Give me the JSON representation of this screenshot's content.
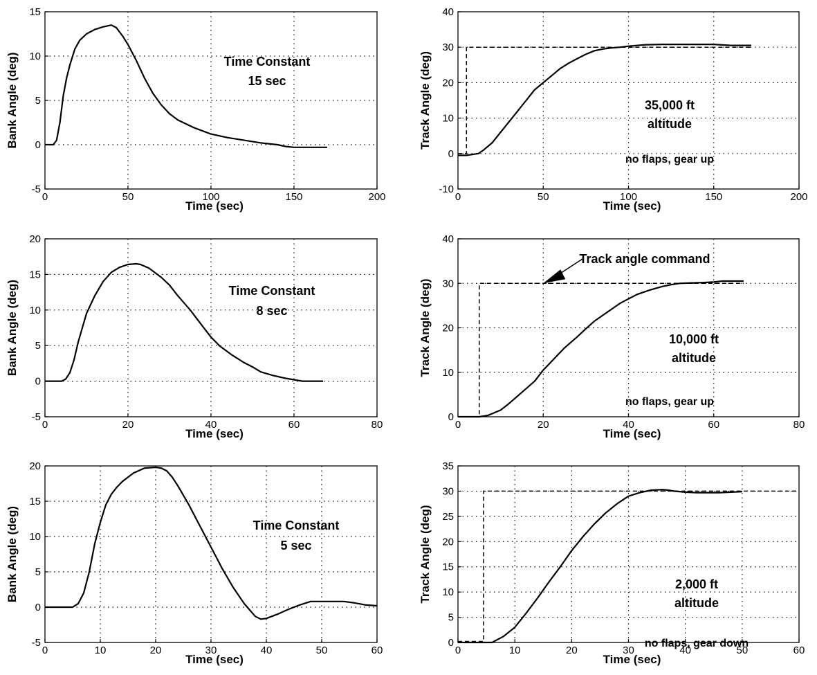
{
  "chart_data": [
    {
      "type": "line",
      "xlabel": "Time (sec)",
      "ylabel": "Bank Angle (deg)",
      "xlim": [
        0,
        200
      ],
      "ylim": [
        -5,
        15
      ],
      "xticks": [
        "0",
        "50",
        "100",
        "150",
        "200"
      ],
      "yticks": [
        "-5",
        "0",
        "5",
        "10",
        "15"
      ],
      "grid": true,
      "annotations": [
        "Time Constant",
        "15 sec"
      ],
      "series": [
        {
          "style": "solid",
          "x": [
            0,
            5,
            7,
            9,
            11,
            13,
            15,
            18,
            21,
            25,
            30,
            35,
            40,
            43,
            47,
            50,
            55,
            60,
            65,
            70,
            75,
            80,
            90,
            100,
            110,
            120,
            130,
            140,
            145,
            150,
            160,
            170
          ],
          "y": [
            0,
            0,
            0.5,
            2.5,
            5.5,
            7.5,
            9,
            10.8,
            11.8,
            12.5,
            13,
            13.3,
            13.5,
            13.2,
            12.2,
            11.3,
            9.5,
            7.5,
            5.8,
            4.5,
            3.5,
            2.8,
            1.9,
            1.2,
            0.8,
            0.5,
            0.2,
            0,
            -0.2,
            -0.3,
            -0.3,
            -0.3
          ]
        }
      ]
    },
    {
      "type": "line",
      "xlabel": "Time (sec)",
      "ylabel": "Track Angle (deg)",
      "xlim": [
        0,
        200
      ],
      "ylim": [
        -10,
        40
      ],
      "xticks": [
        "0",
        "50",
        "100",
        "150",
        "200"
      ],
      "yticks": [
        "-10",
        "0",
        "10",
        "20",
        "30",
        "40"
      ],
      "grid": true,
      "annotations": [
        "35,000 ft",
        "altitude",
        "no flaps, gear up"
      ],
      "series": [
        {
          "style": "dashed",
          "x": [
            0,
            5,
            5,
            172
          ],
          "y": [
            0,
            0,
            30,
            30
          ]
        },
        {
          "style": "solid",
          "x": [
            0,
            5,
            12,
            15,
            20,
            25,
            30,
            35,
            40,
            45,
            50,
            55,
            60,
            65,
            70,
            75,
            80,
            85,
            90,
            95,
            100,
            110,
            120,
            130,
            140,
            150,
            160,
            172
          ],
          "y": [
            -0.5,
            -0.5,
            0,
            1,
            3,
            6,
            9,
            12,
            15,
            18,
            20,
            22,
            24,
            25.5,
            26.8,
            28,
            29,
            29.5,
            29.8,
            30,
            30.3,
            30.7,
            30.8,
            30.8,
            30.8,
            30.8,
            30.5,
            30.5
          ]
        }
      ]
    },
    {
      "type": "line",
      "xlabel": "Time (sec)",
      "ylabel": "Bank Angle (deg)",
      "xlim": [
        0,
        80
      ],
      "ylim": [
        -5,
        20
      ],
      "xticks": [
        "0",
        "20",
        "40",
        "60",
        "80"
      ],
      "yticks": [
        "-5",
        "0",
        "5",
        "10",
        "15",
        "20"
      ],
      "grid": true,
      "annotations": [
        "Time Constant",
        "8 sec"
      ],
      "series": [
        {
          "style": "solid",
          "x": [
            0,
            4,
            5,
            6,
            7,
            8,
            9,
            10,
            12,
            14,
            16,
            18,
            20,
            22,
            23,
            25,
            28,
            30,
            32,
            35,
            38,
            40,
            42,
            45,
            48,
            50,
            52,
            55,
            58,
            60,
            62,
            64,
            67
          ],
          "y": [
            0,
            0,
            0.3,
            1.2,
            3,
            5.5,
            7.5,
            9.5,
            12,
            14,
            15.3,
            16,
            16.4,
            16.5,
            16.4,
            15.9,
            14.6,
            13.5,
            12,
            10,
            7.7,
            6.2,
            5,
            3.7,
            2.6,
            2,
            1.3,
            0.8,
            0.4,
            0.2,
            0,
            0,
            0
          ]
        }
      ]
    },
    {
      "type": "line",
      "xlabel": "Time (sec)",
      "ylabel": "Track Angle (deg)",
      "xlim": [
        0,
        80
      ],
      "ylim": [
        0,
        40
      ],
      "xticks": [
        "0",
        "20",
        "40",
        "60",
        "80"
      ],
      "yticks": [
        "0",
        "10",
        "20",
        "30",
        "40"
      ],
      "grid": true,
      "annotations": [
        "Track angle command",
        "10,000 ft",
        "altitude",
        "no flaps, gear up"
      ],
      "series": [
        {
          "style": "dashed",
          "x": [
            4,
            5,
            5,
            67
          ],
          "y": [
            0,
            0,
            30,
            30
          ]
        },
        {
          "style": "solid",
          "x": [
            0,
            5,
            7,
            10,
            12,
            15,
            18,
            20,
            22,
            25,
            28,
            30,
            32,
            35,
            38,
            40,
            42,
            45,
            48,
            50,
            52,
            55,
            58,
            60,
            62,
            65,
            67
          ],
          "y": [
            0,
            0,
            0.3,
            1.5,
            3,
            5.5,
            8,
            10.5,
            12.5,
            15.5,
            18,
            19.8,
            21.5,
            23.5,
            25.5,
            26.5,
            27.5,
            28.5,
            29.3,
            29.7,
            30,
            30.1,
            30.2,
            30.3,
            30.5,
            30.5,
            30.5
          ]
        }
      ]
    },
    {
      "type": "line",
      "xlabel": "Time (sec)",
      "ylabel": "Bank Angle (deg)",
      "xlim": [
        0,
        60
      ],
      "ylim": [
        -5,
        20
      ],
      "xticks": [
        "0",
        "10",
        "20",
        "30",
        "40",
        "50",
        "60"
      ],
      "yticks": [
        "-5",
        "0",
        "5",
        "10",
        "15",
        "20"
      ],
      "grid": true,
      "annotations": [
        "Time Constant",
        "5 sec"
      ],
      "series": [
        {
          "style": "solid",
          "x": [
            0,
            5,
            6,
            7,
            8,
            9,
            10,
            11,
            12,
            13,
            14,
            16,
            18,
            20,
            21,
            22,
            23,
            24,
            26,
            28,
            30,
            32,
            34,
            36,
            38,
            39,
            40,
            42,
            44,
            46,
            48,
            50,
            52,
            54,
            56,
            58,
            60
          ],
          "y": [
            0,
            0,
            0.5,
            2,
            5,
            9,
            12,
            14.5,
            16,
            17,
            17.8,
            19,
            19.7,
            19.8,
            19.7,
            19.3,
            18.4,
            17.2,
            14.5,
            11.5,
            8.5,
            5.5,
            2.8,
            0.5,
            -1.3,
            -1.7,
            -1.6,
            -1,
            -0.3,
            0.3,
            0.8,
            0.8,
            0.8,
            0.8,
            0.6,
            0.3,
            0.2
          ]
        }
      ]
    },
    {
      "type": "line",
      "xlabel": "Time (sec)",
      "ylabel": "Track Angle (deg)",
      "xlim": [
        0,
        60
      ],
      "ylim": [
        0,
        35
      ],
      "xticks": [
        "0",
        "10",
        "20",
        "30",
        "40",
        "50",
        "60"
      ],
      "yticks": [
        "0",
        "5",
        "10",
        "15",
        "20",
        "25",
        "30",
        "35"
      ],
      "grid": true,
      "annotations": [
        "2,000 ft",
        "altitude",
        "no flaps, gear down"
      ],
      "series": [
        {
          "style": "dashed",
          "x": [
            0,
            4.5,
            4.5,
            60
          ],
          "y": [
            0.2,
            0.2,
            30,
            30
          ]
        },
        {
          "style": "solid",
          "x": [
            0,
            5,
            6,
            8,
            10,
            12,
            14,
            16,
            18,
            20,
            22,
            24,
            26,
            28,
            30,
            32,
            34,
            36,
            37,
            38,
            40,
            42,
            44,
            46,
            48,
            50
          ],
          "y": [
            0,
            0,
            0,
            1.2,
            3,
            5.8,
            8.8,
            12,
            15,
            18.2,
            21,
            23.5,
            25.7,
            27.5,
            29,
            29.7,
            30.2,
            30.3,
            30.2,
            30,
            29.8,
            29.7,
            29.7,
            29.7,
            29.8,
            29.9
          ]
        }
      ]
    }
  ]
}
